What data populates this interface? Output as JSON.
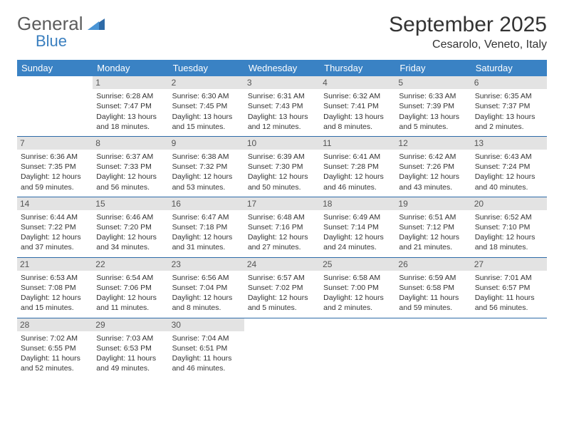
{
  "brand": {
    "word1": "General",
    "word2": "Blue",
    "color_gray": "#5c5c5c",
    "color_blue": "#3a7fbf"
  },
  "title": "September 2025",
  "location": "Cesarolo, Veneto, Italy",
  "header_bg": "#3a82c4",
  "divider_color": "#2e6ba8",
  "daynum_bg": "#e3e3e3",
  "weekdays": [
    "Sunday",
    "Monday",
    "Tuesday",
    "Wednesday",
    "Thursday",
    "Friday",
    "Saturday"
  ],
  "weeks": [
    [
      null,
      {
        "n": "1",
        "sr": "6:28 AM",
        "ss": "7:47 PM",
        "dl": "13 hours and 18 minutes."
      },
      {
        "n": "2",
        "sr": "6:30 AM",
        "ss": "7:45 PM",
        "dl": "13 hours and 15 minutes."
      },
      {
        "n": "3",
        "sr": "6:31 AM",
        "ss": "7:43 PM",
        "dl": "13 hours and 12 minutes."
      },
      {
        "n": "4",
        "sr": "6:32 AM",
        "ss": "7:41 PM",
        "dl": "13 hours and 8 minutes."
      },
      {
        "n": "5",
        "sr": "6:33 AM",
        "ss": "7:39 PM",
        "dl": "13 hours and 5 minutes."
      },
      {
        "n": "6",
        "sr": "6:35 AM",
        "ss": "7:37 PM",
        "dl": "13 hours and 2 minutes."
      }
    ],
    [
      {
        "n": "7",
        "sr": "6:36 AM",
        "ss": "7:35 PM",
        "dl": "12 hours and 59 minutes."
      },
      {
        "n": "8",
        "sr": "6:37 AM",
        "ss": "7:33 PM",
        "dl": "12 hours and 56 minutes."
      },
      {
        "n": "9",
        "sr": "6:38 AM",
        "ss": "7:32 PM",
        "dl": "12 hours and 53 minutes."
      },
      {
        "n": "10",
        "sr": "6:39 AM",
        "ss": "7:30 PM",
        "dl": "12 hours and 50 minutes."
      },
      {
        "n": "11",
        "sr": "6:41 AM",
        "ss": "7:28 PM",
        "dl": "12 hours and 46 minutes."
      },
      {
        "n": "12",
        "sr": "6:42 AM",
        "ss": "7:26 PM",
        "dl": "12 hours and 43 minutes."
      },
      {
        "n": "13",
        "sr": "6:43 AM",
        "ss": "7:24 PM",
        "dl": "12 hours and 40 minutes."
      }
    ],
    [
      {
        "n": "14",
        "sr": "6:44 AM",
        "ss": "7:22 PM",
        "dl": "12 hours and 37 minutes."
      },
      {
        "n": "15",
        "sr": "6:46 AM",
        "ss": "7:20 PM",
        "dl": "12 hours and 34 minutes."
      },
      {
        "n": "16",
        "sr": "6:47 AM",
        "ss": "7:18 PM",
        "dl": "12 hours and 31 minutes."
      },
      {
        "n": "17",
        "sr": "6:48 AM",
        "ss": "7:16 PM",
        "dl": "12 hours and 27 minutes."
      },
      {
        "n": "18",
        "sr": "6:49 AM",
        "ss": "7:14 PM",
        "dl": "12 hours and 24 minutes."
      },
      {
        "n": "19",
        "sr": "6:51 AM",
        "ss": "7:12 PM",
        "dl": "12 hours and 21 minutes."
      },
      {
        "n": "20",
        "sr": "6:52 AM",
        "ss": "7:10 PM",
        "dl": "12 hours and 18 minutes."
      }
    ],
    [
      {
        "n": "21",
        "sr": "6:53 AM",
        "ss": "7:08 PM",
        "dl": "12 hours and 15 minutes."
      },
      {
        "n": "22",
        "sr": "6:54 AM",
        "ss": "7:06 PM",
        "dl": "12 hours and 11 minutes."
      },
      {
        "n": "23",
        "sr": "6:56 AM",
        "ss": "7:04 PM",
        "dl": "12 hours and 8 minutes."
      },
      {
        "n": "24",
        "sr": "6:57 AM",
        "ss": "7:02 PM",
        "dl": "12 hours and 5 minutes."
      },
      {
        "n": "25",
        "sr": "6:58 AM",
        "ss": "7:00 PM",
        "dl": "12 hours and 2 minutes."
      },
      {
        "n": "26",
        "sr": "6:59 AM",
        "ss": "6:58 PM",
        "dl": "11 hours and 59 minutes."
      },
      {
        "n": "27",
        "sr": "7:01 AM",
        "ss": "6:57 PM",
        "dl": "11 hours and 56 minutes."
      }
    ],
    [
      {
        "n": "28",
        "sr": "7:02 AM",
        "ss": "6:55 PM",
        "dl": "11 hours and 52 minutes."
      },
      {
        "n": "29",
        "sr": "7:03 AM",
        "ss": "6:53 PM",
        "dl": "11 hours and 49 minutes."
      },
      {
        "n": "30",
        "sr": "7:04 AM",
        "ss": "6:51 PM",
        "dl": "11 hours and 46 minutes."
      },
      null,
      null,
      null,
      null
    ]
  ],
  "labels": {
    "sunrise": "Sunrise: ",
    "sunset": "Sunset: ",
    "daylight": "Daylight: "
  }
}
